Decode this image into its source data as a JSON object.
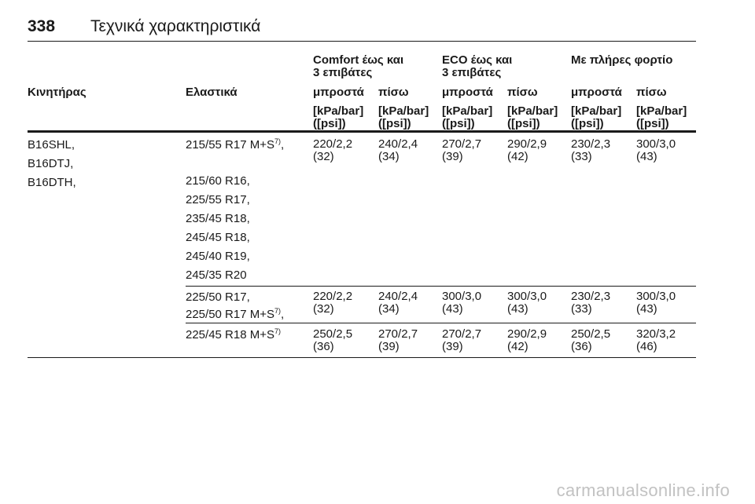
{
  "header": {
    "page_number": "338",
    "title": "Τεχνικά χαρακτηριστικά"
  },
  "table": {
    "groups": [
      "Comfort έως και\n3 επιβάτες",
      "ECO έως και\n3 επιβάτες",
      "Με πλήρες φορτίο"
    ],
    "col_labels": {
      "engine": "Κινητήρας",
      "tires": "Ελαστικά",
      "front": "μπροστά",
      "rear": "πίσω"
    },
    "unit": "[kPa/bar]\n([psi])",
    "rows": [
      {
        "engines": [
          "B16SHL,",
          "B16DTJ,",
          "B16DTH,"
        ],
        "tires": [
          {
            "text": "215/55 R17 M+S",
            "note": "7)",
            "suffix": ","
          },
          {
            "text": "215/60 R16,",
            "note": "",
            "suffix": ""
          },
          {
            "text": "225/55 R17,",
            "note": "",
            "suffix": ""
          },
          {
            "text": "235/45 R18,",
            "note": "",
            "suffix": ""
          },
          {
            "text": "245/45 R18,",
            "note": "",
            "suffix": ""
          },
          {
            "text": "245/40 R19,",
            "note": "",
            "suffix": ""
          },
          {
            "text": "245/35 R20",
            "note": "",
            "suffix": ""
          }
        ],
        "values": [
          "220/2,2\n(32)",
          "240/2,4\n(34)",
          "270/2,7\n(39)",
          "290/2,9\n(42)",
          "230/2,3\n(33)",
          "300/3,0\n(43)"
        ]
      },
      {
        "engines": [],
        "tires": [
          {
            "text": "225/50 R17,",
            "note": "",
            "suffix": ""
          },
          {
            "text": "225/50 R17 M+S",
            "note": "7)",
            "suffix": ","
          }
        ],
        "values": [
          "220/2,2\n(32)",
          "240/2,4\n(34)",
          "300/3,0\n(43)",
          "300/3,0\n(43)",
          "230/2,3\n(33)",
          "300/3,0\n(43)"
        ]
      },
      {
        "engines": [],
        "tires": [
          {
            "text": "225/45 R18 M+S",
            "note": "7)",
            "suffix": ""
          }
        ],
        "values": [
          "250/2,5\n(36)",
          "270/2,7\n(39)",
          "270/2,7\n(39)",
          "290/2,9\n(42)",
          "250/2,5\n(36)",
          "320/3,2\n(46)"
        ]
      }
    ]
  },
  "watermark": "carmanualsonline.info"
}
